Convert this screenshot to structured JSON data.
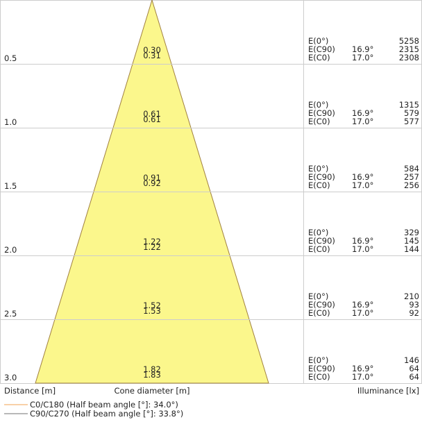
{
  "rows": [
    {
      "distance": "0.5",
      "diameter": [
        "0.30",
        "0.31"
      ],
      "illuminance": [
        [
          "E(0°)",
          "",
          "5258"
        ],
        [
          "E(C90)",
          "16.9°",
          "2315"
        ],
        [
          "E(C0)",
          "17.0°",
          "2308"
        ]
      ]
    },
    {
      "distance": "1.0",
      "diameter": [
        "0.61",
        "0.61"
      ],
      "illuminance": [
        [
          "E(0°)",
          "",
          "1315"
        ],
        [
          "E(C90)",
          "16.9°",
          "579"
        ],
        [
          "E(C0)",
          "17.0°",
          "577"
        ]
      ]
    },
    {
      "distance": "1.5",
      "diameter": [
        "0.91",
        "0.92"
      ],
      "illuminance": [
        [
          "E(0°)",
          "",
          "584"
        ],
        [
          "E(C90)",
          "16.9°",
          "257"
        ],
        [
          "E(C0)",
          "17.0°",
          "256"
        ]
      ]
    },
    {
      "distance": "2.0",
      "diameter": [
        "1.22",
        "1.22"
      ],
      "illuminance": [
        [
          "E(0°)",
          "",
          "329"
        ],
        [
          "E(C90)",
          "16.9°",
          "145"
        ],
        [
          "E(C0)",
          "17.0°",
          "144"
        ]
      ]
    },
    {
      "distance": "2.5",
      "diameter": [
        "1.52",
        "1.53"
      ],
      "illuminance": [
        [
          "E(0°)",
          "",
          "210"
        ],
        [
          "E(C90)",
          "16.9°",
          "93"
        ],
        [
          "E(C0)",
          "17.0°",
          "92"
        ]
      ]
    },
    {
      "distance": "3.0",
      "diameter": [
        "1.82",
        "1.83"
      ],
      "illuminance": [
        [
          "E(0°)",
          "",
          "146"
        ],
        [
          "E(C90)",
          "16.9°",
          "64"
        ],
        [
          "E(C0)",
          "17.0°",
          "64"
        ]
      ]
    }
  ],
  "footer": {
    "distance": "Distance [m]",
    "diameter": "Cone diameter [m]",
    "illuminance": "Illuminance [lx]"
  },
  "legend": [
    {
      "label": "C0/C180 (Half beam angle [°]: 34.0°)",
      "color": "#f0a050"
    },
    {
      "label": "C90/C270 (Half beam angle [°]: 33.8°)",
      "color": "#707070"
    }
  ]
}
